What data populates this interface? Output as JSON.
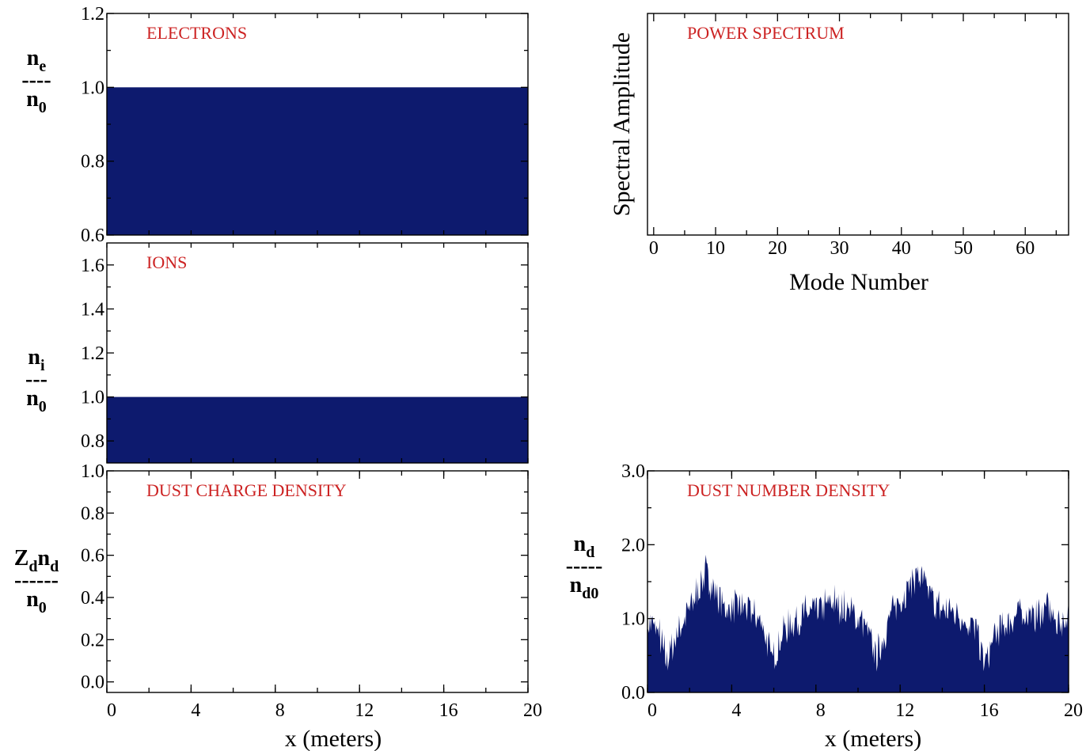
{
  "colors": {
    "fill": "#0d1a6e",
    "label": "#cc2222",
    "axis": "#000000"
  },
  "chart_data": [
    {
      "id": "electrons",
      "type": "area",
      "title": "ELECTRONS",
      "ylabel": {
        "numerator": "n",
        "numerator_sub": "e",
        "dashes": "----",
        "denominator": "n",
        "denominator_sub": "0"
      },
      "xlim": [
        0,
        20
      ],
      "ylim": [
        0.6,
        1.2
      ],
      "yticks": [
        {
          "value": 0.6,
          "label": "0.6"
        },
        {
          "value": 0.8,
          "label": "0.8"
        },
        {
          "value": 1.0,
          "label": "1.0"
        },
        {
          "value": 1.2,
          "label": "1.2"
        }
      ],
      "xticks": [],
      "fill_level": 1.0
    },
    {
      "id": "ions",
      "type": "area",
      "title": "IONS",
      "ylabel": {
        "numerator": "n",
        "numerator_sub": "i",
        "dashes": "---",
        "denominator": "n",
        "denominator_sub": "0"
      },
      "xlim": [
        0,
        20
      ],
      "ylim": [
        0.7,
        1.7
      ],
      "yticks": [
        {
          "value": 0.8,
          "label": "0.8"
        },
        {
          "value": 1.0,
          "label": "1.0"
        },
        {
          "value": 1.2,
          "label": "1.2"
        },
        {
          "value": 1.4,
          "label": "1.4"
        },
        {
          "value": 1.6,
          "label": "1.6"
        }
      ],
      "xticks": [],
      "fill_level": 1.0
    },
    {
      "id": "dust-charge",
      "type": "area",
      "title": "DUST CHARGE DENSITY",
      "ylabel": {
        "numerator_pre": "Z",
        "numerator_pre_sub": "d",
        "numerator": "n",
        "numerator_sub": "d",
        "dashes": "------",
        "denominator": "n",
        "denominator_sub": "0"
      },
      "xlim": [
        0,
        20
      ],
      "ylim": [
        -0.05,
        1.0
      ],
      "yticks": [
        {
          "value": 0.0,
          "label": "0.0"
        },
        {
          "value": 0.2,
          "label": "0.2"
        },
        {
          "value": 0.4,
          "label": "0.4"
        },
        {
          "value": 0.6,
          "label": "0.6"
        },
        {
          "value": 0.8,
          "label": "0.8"
        },
        {
          "value": 1.0,
          "label": "1.0"
        }
      ],
      "xticks": [
        {
          "value": 0,
          "label": "0"
        },
        {
          "value": 4,
          "label": "4"
        },
        {
          "value": 8,
          "label": "8"
        },
        {
          "value": 12,
          "label": "12"
        },
        {
          "value": 16,
          "label": "16"
        },
        {
          "value": 20,
          "label": "20"
        }
      ],
      "xlabel": "x (meters)",
      "fill_level": null
    },
    {
      "id": "power-spectrum",
      "type": "line",
      "title": "POWER SPECTRUM",
      "ylabel_text": "Spectral Amplitude",
      "xlabel": "Mode Number",
      "xlim": [
        -1,
        67
      ],
      "xticks": [
        {
          "value": 0,
          "label": "0"
        },
        {
          "value": 10,
          "label": "10"
        },
        {
          "value": 20,
          "label": "20"
        },
        {
          "value": 30,
          "label": "30"
        },
        {
          "value": 40,
          "label": "40"
        },
        {
          "value": 50,
          "label": "50"
        },
        {
          "value": 60,
          "label": "60"
        }
      ],
      "yticks": [],
      "values": []
    },
    {
      "id": "dust-number",
      "type": "area",
      "title": "DUST NUMBER DENSITY",
      "ylabel": {
        "numerator": "n",
        "numerator_sub": "d",
        "dashes": "-----",
        "denominator": "n",
        "denominator_sub": "d0"
      },
      "xlim": [
        0,
        20
      ],
      "ylim": [
        0,
        3.0
      ],
      "yticks": [
        {
          "value": 0.0,
          "label": "0.0"
        },
        {
          "value": 1.0,
          "label": "1.0"
        },
        {
          "value": 2.0,
          "label": "2.0"
        },
        {
          "value": 3.0,
          "label": "3.0"
        }
      ],
      "xticks": [
        {
          "value": 0,
          "label": "0"
        },
        {
          "value": 4,
          "label": "4"
        },
        {
          "value": 8,
          "label": "8"
        },
        {
          "value": 12,
          "label": "12"
        },
        {
          "value": 16,
          "label": "16"
        },
        {
          "value": 20,
          "label": "20"
        }
      ],
      "xlabel": "x (meters)",
      "profile": {
        "x": [
          0,
          0.5,
          0.9,
          1.5,
          2.0,
          2.5,
          2.8,
          3.2,
          3.8,
          4.4,
          5.0,
          5.5,
          5.9,
          6.4,
          7.0,
          7.6,
          8.2,
          8.8,
          9.5,
          10.2,
          10.9,
          11.5,
          12.0,
          12.5,
          12.8,
          13.3,
          13.9,
          14.5,
          15.0,
          15.6,
          16.0,
          16.6,
          17.2,
          17.8,
          18.4,
          19.0,
          19.5,
          20.0
        ],
        "y": [
          0.95,
          0.8,
          0.4,
          0.85,
          1.1,
          1.45,
          1.6,
          1.35,
          1.1,
          1.15,
          1.05,
          0.9,
          0.4,
          0.8,
          0.95,
          1.05,
          1.1,
          1.2,
          1.1,
          0.95,
          0.45,
          1.0,
          1.25,
          1.45,
          1.6,
          1.35,
          1.1,
          1.1,
          1.0,
          0.85,
          0.35,
          0.8,
          0.95,
          1.1,
          1.0,
          1.15,
          0.9,
          1.05
        ]
      }
    }
  ]
}
